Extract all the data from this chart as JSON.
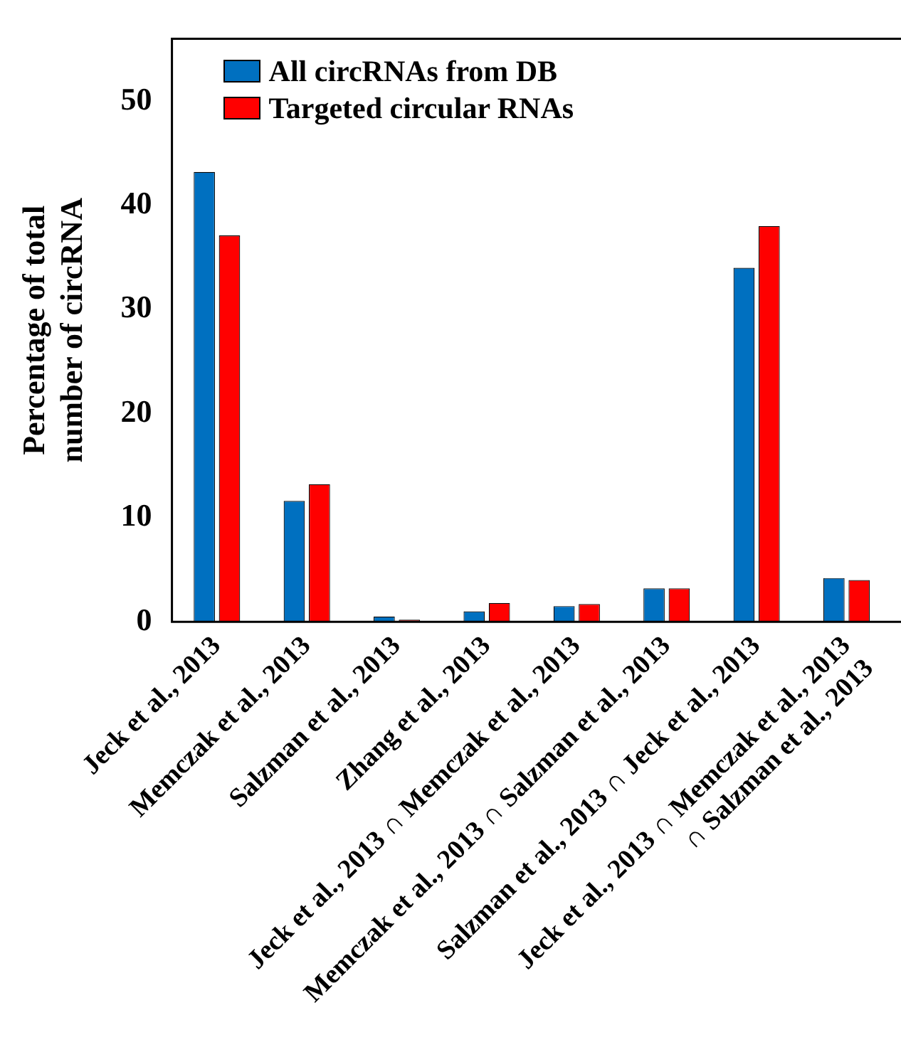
{
  "chart_data": {
    "type": "bar",
    "ylabel": "Percentage of total\nnumber of circRNA",
    "categories": [
      "Jeck et al., 2013",
      "Memczak et al., 2013",
      "Salzman et al., 2013",
      "Zhang et al., 2013",
      "Jeck et al., 2013 ∩ Memczak et al., 2013",
      "Memczak et al., 2013 ∩ Salzman et al., 2013",
      "Salzman et al., 2013 ∩ Jeck et al., 2013",
      "Jeck et al., 2013 ∩ Memczak et al., 2013\n∩ Salzman et al., 2013"
    ],
    "series": [
      {
        "name": "All circRNAs from DB",
        "color": "#0070c0",
        "values": [
          43.2,
          11.6,
          0.5,
          1.0,
          1.5,
          3.2,
          34.0,
          4.2
        ]
      },
      {
        "name": "Targeted circular RNAs",
        "color": "#ff0000",
        "values": [
          37.1,
          13.2,
          0.2,
          1.8,
          1.7,
          3.2,
          38.0,
          4.0
        ]
      }
    ],
    "ylim": [
      0,
      56
    ],
    "yticks": [
      0,
      10,
      20,
      30,
      40,
      50
    ],
    "grid": false,
    "legend": "top left"
  }
}
